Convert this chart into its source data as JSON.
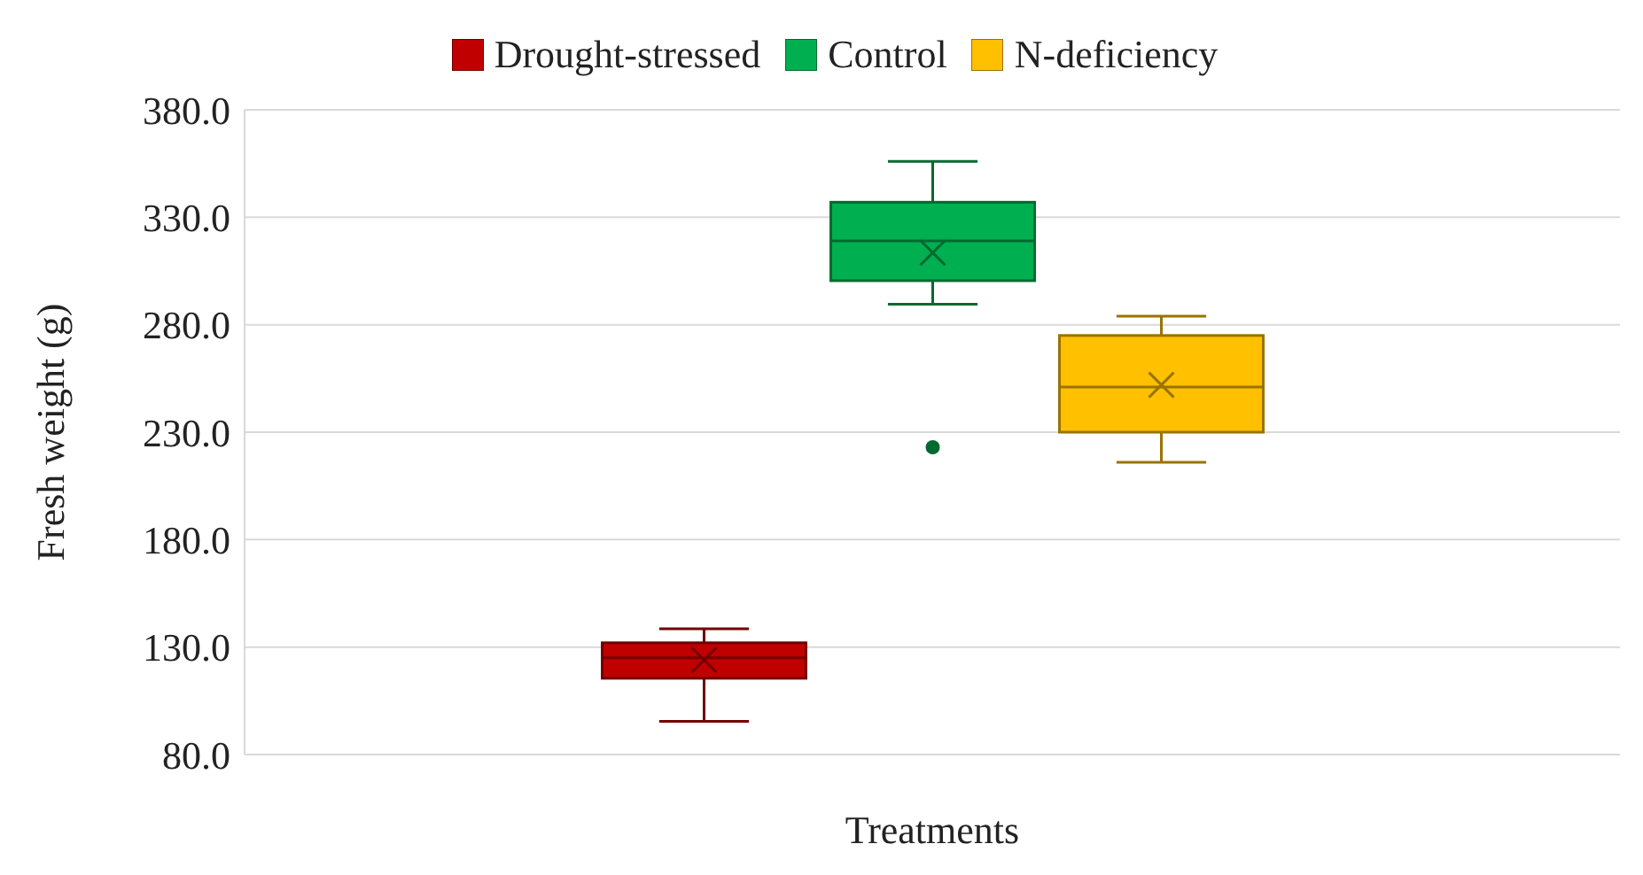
{
  "chart_data": {
    "type": "box",
    "xlabel": "Treatments",
    "ylabel": "Fresh weight (g)",
    "categories": [
      null
    ],
    "series": [
      {
        "name": "Drought-stressed",
        "color": "#c00000",
        "boxes": [
          {
            "low": 95.5,
            "q1": 115.5,
            "median": 125,
            "q3": 132,
            "high": 138.5,
            "mean": 124
          }
        ]
      },
      {
        "name": "Control",
        "color": "#00b050",
        "boxes": [
          {
            "low": 289.5,
            "q1": 300.5,
            "median": 319,
            "q3": 337,
            "high": 356,
            "mean": 313.5,
            "outliers": [
              223
            ]
          }
        ]
      },
      {
        "name": "N-deficiency",
        "color": "#ffc000",
        "boxes": [
          {
            "low": 216,
            "q1": 230,
            "median": 251,
            "q3": 275,
            "high": 284,
            "mean": 252
          }
        ]
      }
    ],
    "ylim": [
      80,
      380
    ],
    "yticks": [
      {
        "value": 80,
        "label": "80.0"
      },
      {
        "value": 130,
        "label": "130.0"
      },
      {
        "value": 180,
        "label": "180.0"
      },
      {
        "value": 230,
        "label": "230.0"
      },
      {
        "value": 280,
        "label": "280.0"
      },
      {
        "value": 330,
        "label": "330.0"
      },
      {
        "value": 380,
        "label": "380.0"
      }
    ],
    "grid": "y",
    "legend": "top"
  }
}
